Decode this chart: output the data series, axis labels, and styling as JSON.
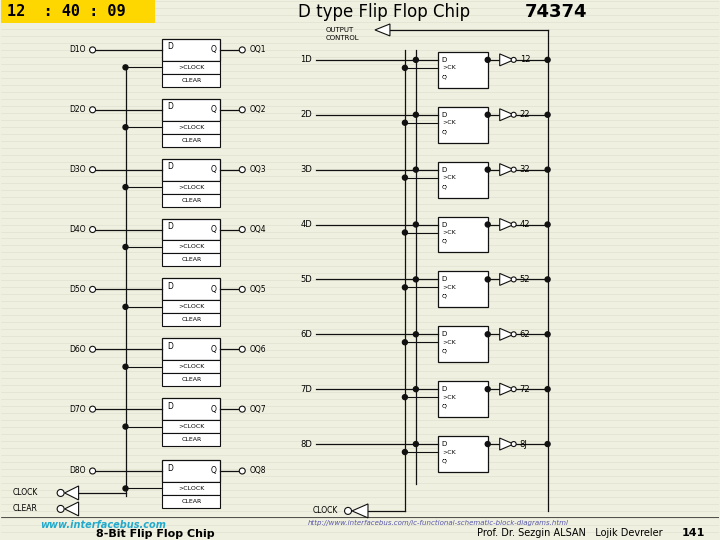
{
  "bg_color": "#f0f0e0",
  "header_color": "#FFD700",
  "time_text": "12  : 40 : 09",
  "title_normal": "D type Flip Flop Chip ",
  "title_bold": "74374",
  "left_chip_title": "8-Bit Flip Flop Chip",
  "url_left": "www.interfacebus.com",
  "url_right": "http://www.interfacebus.com/ic-functional-schematic-block-diagrams.html",
  "footer_prof": "Prof. Dr. Sezgin ALSAN   Lojik Devreler",
  "page_num": "141",
  "lc": "#111111",
  "stripe_color": "#dedece",
  "cell_ys_left": [
    490,
    430,
    370,
    310,
    250,
    190,
    130,
    68
  ],
  "cell_ys_right": [
    470,
    415,
    360,
    305,
    250,
    195,
    140,
    85
  ],
  "left_inputs": [
    "D1",
    "D2",
    "D3",
    "D4",
    "D5",
    "D6",
    "D7",
    "D8"
  ],
  "left_outputs": [
    "Q1",
    "Q2",
    "Q3",
    "Q4",
    "Q5",
    "Q6",
    "Q7",
    "Q8"
  ],
  "right_inputs": [
    "1D",
    "2D",
    "3D",
    "4D",
    "5D",
    "6D",
    "7D",
    "8D"
  ],
  "right_outputs": [
    "12",
    "22",
    "32",
    "42",
    "52",
    "62",
    "72",
    "8J"
  ]
}
